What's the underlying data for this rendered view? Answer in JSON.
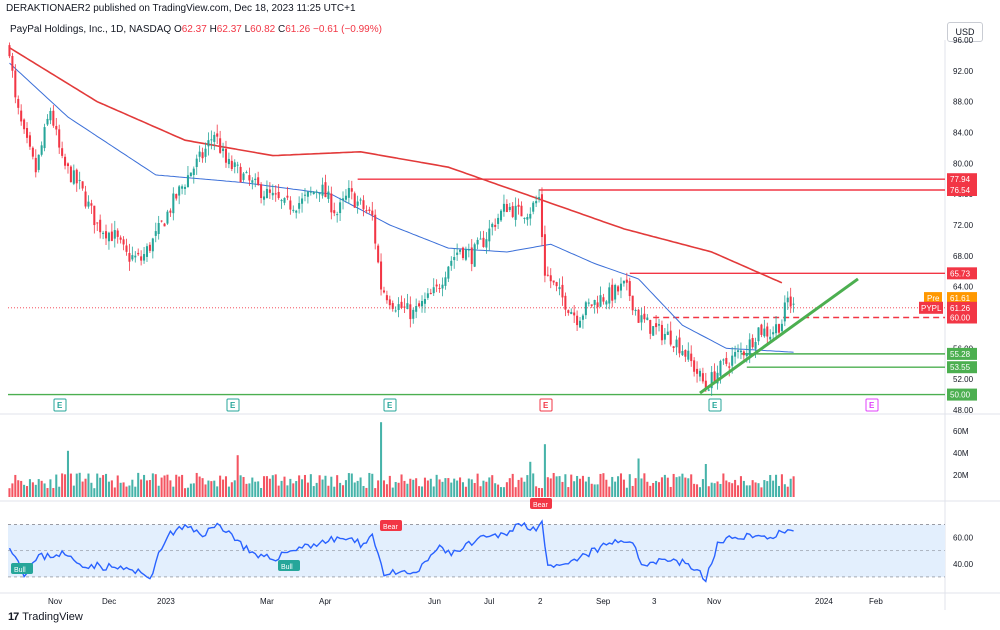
{
  "header": {
    "publish_text": "DERAKTIONAER2 published on TradingView.com, Dec 18, 2023 11:25 UTC+1",
    "symbol_name": "PayPal Holdings, Inc., 1D, NASDAQ",
    "ohlc": {
      "o_label": "O",
      "o": "62.37",
      "h_label": "H",
      "h": "62.37",
      "l_label": "L",
      "l": "60.82",
      "c_label": "C",
      "c": "61.26",
      "change": "−0.61 (−0.99%)"
    },
    "currency": "USD"
  },
  "footer": {
    "brand": "TradingView",
    "brand_mark": "17"
  },
  "colors": {
    "up": "#26a69a",
    "down": "#f23645",
    "ma_slow": "#e23a3a",
    "ma_fast": "#3b6fd8",
    "trendline": "#4caf50",
    "level_red": "#f23645",
    "level_green": "#4caf50",
    "rsi_line": "#2962ff",
    "rsi_band": "#e3effd",
    "pre_badge": "#ff9800"
  },
  "chart_data": [
    {
      "type": "candlestick",
      "id": "price",
      "symbol": "PYPL",
      "ylim": [
        48,
        96
      ],
      "y_ticks": [
        "48.00",
        "52.00",
        "56.00",
        "60.00",
        "64.00",
        "68.00",
        "72.00",
        "76.00",
        "80.00",
        "84.00",
        "88.00",
        "92.00",
        "96.00"
      ],
      "x_ticks": [
        "Nov",
        "Dec",
        "2023",
        "Mar",
        "Apr",
        "Jun",
        "Jul",
        "2",
        "Sep",
        "3",
        "Nov",
        "2024",
        "Feb"
      ],
      "price_anchors": [
        [
          0,
          95
        ],
        [
          2,
          88
        ],
        [
          5,
          83.5
        ],
        [
          9,
          79
        ],
        [
          14,
          87
        ],
        [
          18,
          80
        ],
        [
          24,
          77
        ],
        [
          30,
          72
        ],
        [
          36,
          70.5
        ],
        [
          40,
          68
        ],
        [
          45,
          67.5
        ],
        [
          50,
          70.5
        ],
        [
          56,
          75
        ],
        [
          62,
          79
        ],
        [
          66,
          81
        ],
        [
          70,
          84
        ],
        [
          74,
          80
        ],
        [
          78,
          79
        ],
        [
          82,
          77.5
        ],
        [
          88,
          76
        ],
        [
          94,
          74.5
        ],
        [
          100,
          75
        ],
        [
          106,
          77
        ],
        [
          112,
          73.5
        ],
        [
          116,
          76
        ],
        [
          120,
          74.5
        ],
        [
          124,
          73
        ],
        [
          127,
          64
        ],
        [
          131,
          62
        ],
        [
          135,
          61
        ],
        [
          138,
          60.5
        ],
        [
          142,
          62
        ],
        [
          146,
          63.5
        ],
        [
          150,
          67
        ],
        [
          154,
          69
        ],
        [
          158,
          68
        ],
        [
          162,
          70
        ],
        [
          166,
          72.5
        ],
        [
          170,
          74.5
        ],
        [
          174,
          73.5
        ],
        [
          178,
          74
        ],
        [
          181,
          75.5
        ],
        [
          183,
          66
        ],
        [
          187,
          63.5
        ],
        [
          190,
          62
        ],
        [
          194,
          60
        ],
        [
          198,
          61.5
        ],
        [
          202,
          62.5
        ],
        [
          206,
          63
        ],
        [
          210,
          64
        ],
        [
          212,
          63
        ],
        [
          215,
          60
        ],
        [
          220,
          58.5
        ],
        [
          226,
          57.5
        ],
        [
          230,
          56
        ],
        [
          234,
          53.5
        ],
        [
          238,
          51
        ],
        [
          241,
          52.5
        ],
        [
          244,
          53.8
        ],
        [
          248,
          55
        ],
        [
          252,
          56
        ],
        [
          256,
          58.5
        ],
        [
          260,
          58
        ],
        [
          264,
          59.5
        ],
        [
          266,
          62.37
        ],
        [
          268,
          61.26
        ]
      ],
      "levels": [
        {
          "value": 77.94,
          "label": "77.94",
          "color": "red"
        },
        {
          "value": 76.54,
          "label": "76.54",
          "color": "red"
        },
        {
          "value": 65.73,
          "label": "65.73",
          "color": "red"
        },
        {
          "value": 60.0,
          "label": "60.00",
          "color": "red",
          "dashed": true
        },
        {
          "value": 55.28,
          "label": "55.28",
          "color": "green"
        },
        {
          "value": 53.55,
          "label": "53.55",
          "color": "green"
        },
        {
          "value": 50.0,
          "label": "50.00",
          "color": "green"
        }
      ],
      "current": {
        "pre_label": "Pre",
        "pre_value": "61.61",
        "symbol_label": "PYPL",
        "last_value": "61.26"
      },
      "moving_averages": [
        {
          "name": "slow",
          "points": [
            [
              0,
              95
            ],
            [
              30,
              88
            ],
            [
              60,
              83
            ],
            [
              90,
              81
            ],
            [
              120,
              81.5
            ],
            [
              150,
              79.5
            ],
            [
              180,
              75.5
            ],
            [
              210,
              71.5
            ],
            [
              240,
              68.5
            ],
            [
              264,
              64.5
            ]
          ]
        },
        {
          "name": "fast",
          "points": [
            [
              0,
              93
            ],
            [
              20,
              86
            ],
            [
              50,
              78.5
            ],
            [
              80,
              77.5
            ],
            [
              110,
              76
            ],
            [
              130,
              72
            ],
            [
              150,
              69
            ],
            [
              170,
              68.5
            ],
            [
              185,
              69.5
            ],
            [
              200,
              67
            ],
            [
              215,
              65
            ],
            [
              230,
              59
            ],
            [
              245,
              56
            ],
            [
              268,
              55.5
            ]
          ]
        }
      ],
      "trendline": {
        "from": [
          236,
          50.2
        ],
        "to": [
          290,
          65
        ]
      },
      "earnings_markers": [
        "E",
        "E",
        "E",
        "E",
        "E",
        "E"
      ]
    },
    {
      "type": "bar",
      "id": "volume",
      "y_ticks": [
        "60M",
        "40M",
        "20M"
      ],
      "ylim": [
        0,
        70
      ],
      "spikes": [
        [
          127,
          68
        ],
        [
          183,
          48
        ],
        [
          178,
          32
        ],
        [
          215,
          35
        ],
        [
          238,
          30
        ],
        [
          20,
          42
        ],
        [
          78,
          38
        ]
      ]
    },
    {
      "type": "line",
      "id": "rsi",
      "y_ticks": [
        "60.00",
        "40.00"
      ],
      "ylim": [
        20,
        85
      ],
      "band": [
        30,
        70
      ],
      "anchors": [
        [
          0,
          55
        ],
        [
          5,
          33
        ],
        [
          10,
          45
        ],
        [
          18,
          48
        ],
        [
          24,
          40
        ],
        [
          32,
          38
        ],
        [
          40,
          36
        ],
        [
          48,
          30
        ],
        [
          54,
          62
        ],
        [
          60,
          68
        ],
        [
          66,
          63
        ],
        [
          72,
          70
        ],
        [
          78,
          58
        ],
        [
          84,
          45
        ],
        [
          90,
          44
        ],
        [
          98,
          52
        ],
        [
          106,
          56
        ],
        [
          114,
          60
        ],
        [
          120,
          55
        ],
        [
          124,
          62
        ],
        [
          128,
          33
        ],
        [
          134,
          32
        ],
        [
          140,
          34
        ],
        [
          146,
          52
        ],
        [
          152,
          48
        ],
        [
          160,
          58
        ],
        [
          168,
          62
        ],
        [
          174,
          70
        ],
        [
          180,
          68
        ],
        [
          182,
          72
        ],
        [
          184,
          36
        ],
        [
          190,
          38
        ],
        [
          198,
          48
        ],
        [
          206,
          56
        ],
        [
          212,
          59
        ],
        [
          216,
          40
        ],
        [
          224,
          44
        ],
        [
          232,
          40
        ],
        [
          238,
          28
        ],
        [
          242,
          55
        ],
        [
          250,
          62
        ],
        [
          258,
          60
        ],
        [
          264,
          64
        ],
        [
          268,
          63
        ]
      ],
      "labels": [
        {
          "text": "Bull",
          "kind": "bull"
        },
        {
          "text": "Bull",
          "kind": "bull"
        },
        {
          "text": "Bear",
          "kind": "bear"
        },
        {
          "text": "Bear",
          "kind": "bear"
        }
      ]
    }
  ]
}
